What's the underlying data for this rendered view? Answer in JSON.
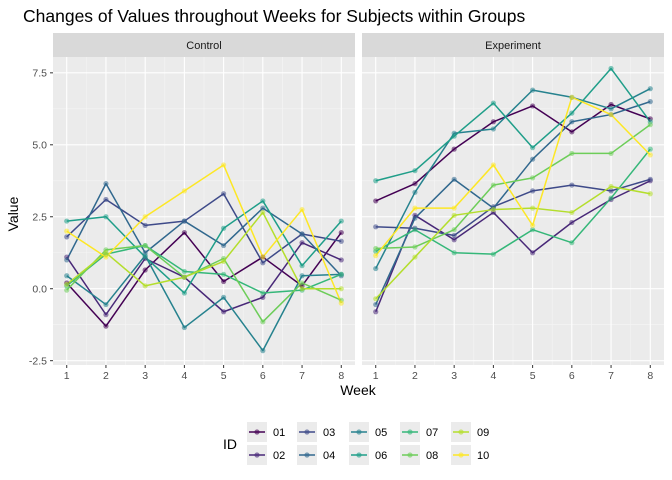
{
  "chart_data": {
    "type": "line",
    "title": "Changes of Values throughout Weeks for Subjects within Groups",
    "xlabel": "Week",
    "ylabel": "Value",
    "x": [
      1,
      2,
      3,
      4,
      5,
      6,
      7,
      8
    ],
    "xlim": [
      0.65,
      8.35
    ],
    "ylim": [
      -2.65,
      8.05
    ],
    "yticks": [
      -2.5,
      0.0,
      2.5,
      5.0,
      7.5
    ],
    "ytick_labels": [
      "-2.5",
      "0.0",
      "2.5",
      "5.0",
      "7.5"
    ],
    "xtick_labels": [
      "1",
      "2",
      "3",
      "4",
      "5",
      "6",
      "7",
      "8"
    ],
    "grid": true,
    "legend": {
      "title": "ID",
      "position": "bottom",
      "entries": [
        "01",
        "02",
        "03",
        "04",
        "05",
        "06",
        "07",
        "08",
        "09",
        "10"
      ]
    },
    "colors": {
      "01": "#440154",
      "02": "#482878",
      "03": "#3E4A89",
      "04": "#31688E",
      "05": "#26828E",
      "06": "#1F9E89",
      "07": "#35B779",
      "08": "#6DCD59",
      "09": "#B4DE2C",
      "10": "#FDE725"
    },
    "panels": [
      {
        "name": "Control",
        "series": [
          {
            "id": "01",
            "values": [
              0.2,
              -1.3,
              0.65,
              1.95,
              0.25,
              1.1,
              0.1,
              1.95
            ]
          },
          {
            "id": "02",
            "values": [
              1.1,
              -0.9,
              1.05,
              0.4,
              -0.8,
              -0.3,
              1.6,
              1.0
            ]
          },
          {
            "id": "03",
            "values": [
              1.8,
              3.1,
              2.2,
              2.35,
              3.3,
              0.9,
              1.9,
              1.65
            ]
          },
          {
            "id": "04",
            "values": [
              1.0,
              3.65,
              1.25,
              2.35,
              1.5,
              2.8,
              1.9,
              0.45
            ]
          },
          {
            "id": "05",
            "values": [
              0.45,
              -0.55,
              1.15,
              -1.35,
              -0.3,
              -2.15,
              0.45,
              0.5
            ]
          },
          {
            "id": "06",
            "values": [
              2.35,
              2.5,
              1.1,
              -0.15,
              2.1,
              3.05,
              0.8,
              2.35
            ]
          },
          {
            "id": "07",
            "values": [
              0.1,
              1.2,
              1.5,
              0.6,
              0.5,
              -0.15,
              -0.05,
              0.5
            ]
          },
          {
            "id": "08",
            "values": [
              -0.05,
              1.35,
              1.5,
              0.4,
              1.05,
              -1.15,
              0.2,
              -0.4
            ]
          },
          {
            "id": "09",
            "values": [
              0.15,
              1.25,
              0.1,
              0.4,
              0.95,
              2.65,
              0.0,
              0.0
            ]
          },
          {
            "id": "10",
            "values": [
              2.0,
              1.1,
              2.5,
              3.4,
              4.3,
              1.1,
              2.75,
              -0.5
            ]
          }
        ]
      },
      {
        "name": "Experiment",
        "series": [
          {
            "id": "01",
            "values": [
              3.05,
              3.65,
              4.85,
              5.8,
              6.35,
              5.45,
              6.4,
              5.9
            ]
          },
          {
            "id": "02",
            "values": [
              -0.8,
              2.55,
              1.7,
              2.65,
              1.25,
              2.3,
              3.1,
              3.75
            ]
          },
          {
            "id": "03",
            "values": [
              2.15,
              2.1,
              1.85,
              2.85,
              3.4,
              3.6,
              3.4,
              3.8
            ]
          },
          {
            "id": "04",
            "values": [
              -0.55,
              2.45,
              3.8,
              2.8,
              4.5,
              5.8,
              6.05,
              6.5
            ]
          },
          {
            "id": "05",
            "values": [
              0.7,
              3.35,
              5.4,
              5.55,
              6.9,
              6.65,
              6.25,
              6.95
            ]
          },
          {
            "id": "06",
            "values": [
              3.75,
              4.1,
              5.3,
              6.45,
              4.9,
              6.1,
              7.65,
              5.8
            ]
          },
          {
            "id": "07",
            "values": [
              1.3,
              2.05,
              1.25,
              1.2,
              2.05,
              1.6,
              3.15,
              4.85
            ]
          },
          {
            "id": "08",
            "values": [
              1.4,
              1.45,
              2.05,
              3.6,
              3.85,
              4.7,
              4.7,
              5.7
            ]
          },
          {
            "id": "09",
            "values": [
              -0.35,
              1.1,
              2.55,
              2.75,
              2.8,
              2.65,
              3.55,
              3.3
            ]
          },
          {
            "id": "10",
            "values": [
              1.15,
              2.8,
              2.8,
              4.3,
              2.2,
              6.65,
              6.05,
              4.65
            ]
          }
        ]
      }
    ]
  }
}
